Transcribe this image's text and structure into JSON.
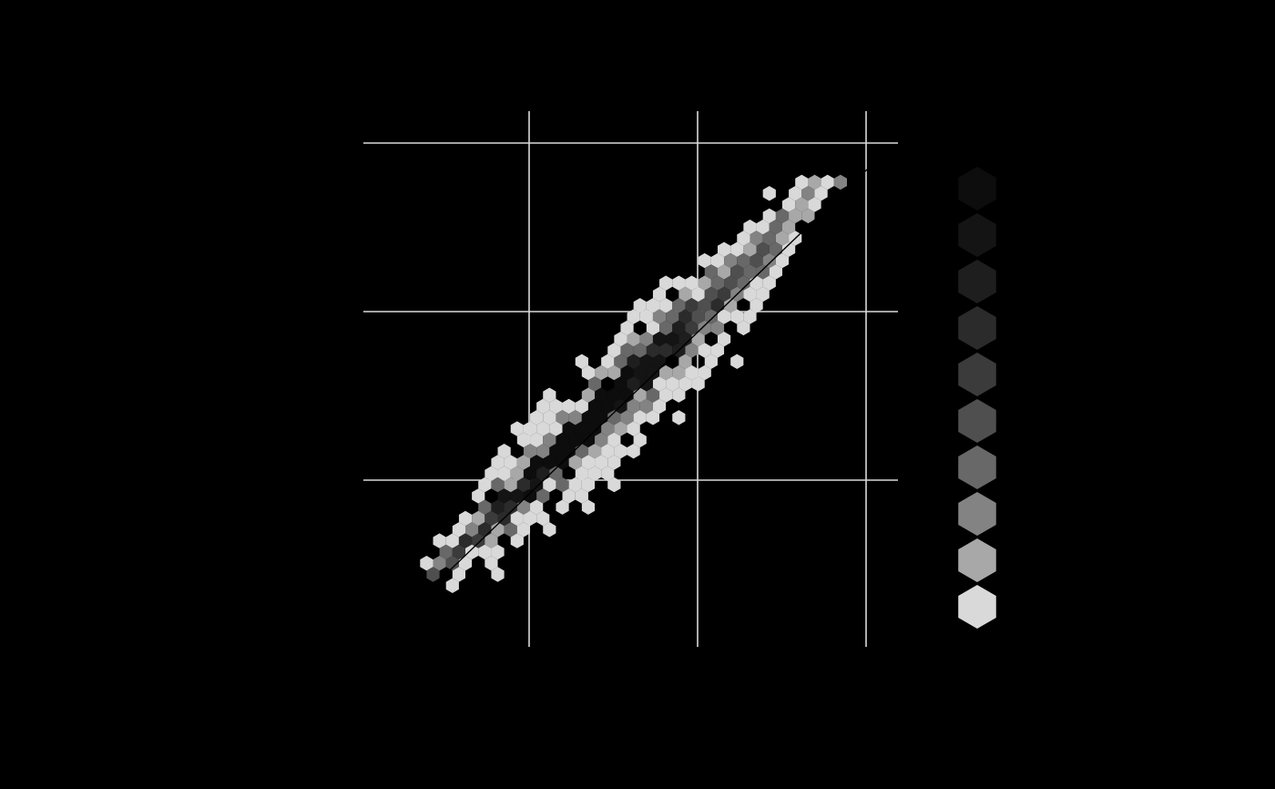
{
  "chart_data": {
    "type": "hexbin",
    "title": "",
    "xlabel": "",
    "ylabel": "",
    "background": "#000000",
    "gridline_color": "#d9d9d9",
    "grid": true,
    "legend": {
      "placement": "right",
      "levels": [
        "#0d0d0d",
        "#141414",
        "#1e1e1e",
        "#2b2b2b",
        "#3b3b3b",
        "#4f4f4f",
        "#686868",
        "#838383",
        "#a8a8a8",
        "#d9d9d9"
      ]
    },
    "fit_line": {
      "x": [
        -1.0,
        1.55
      ],
      "y": [
        -1.55,
        0.93
      ]
    },
    "grid_values": [
      {
        "x": -0.6,
        "y": -0.8,
        "level": 9
      },
      {
        "x": -0.4,
        "y": -0.6,
        "level": 8
      },
      {
        "x": -0.2,
        "y": -0.3,
        "level": 5
      },
      {
        "x": 0.0,
        "y": -0.1,
        "level": 2
      },
      {
        "x": 0.1,
        "y": 0.05,
        "level": 1
      },
      {
        "x": 0.3,
        "y": 0.2,
        "level": 3
      },
      {
        "x": 0.5,
        "y": 0.4,
        "level": 4
      },
      {
        "x": 0.7,
        "y": 0.6,
        "level": 6
      },
      {
        "x": 0.9,
        "y": 0.8,
        "level": 8
      },
      {
        "x": 1.1,
        "y": 1.0,
        "level": 9
      }
    ]
  }
}
